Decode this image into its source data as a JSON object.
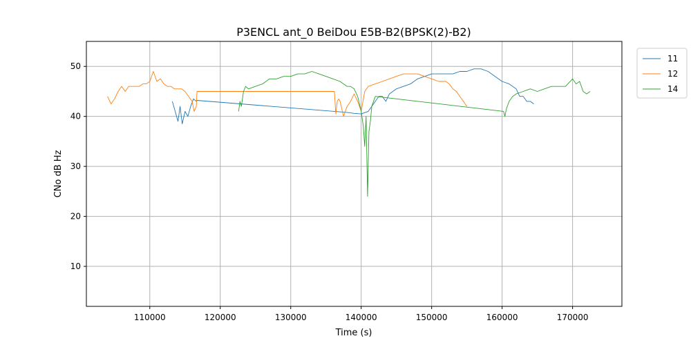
{
  "chart_data": {
    "type": "line",
    "title": "P3ENCL ant_0 BeiDou E5B-B2(BPSK(2)-B2)",
    "xlabel": "Time (s)",
    "ylabel": "CNo dB Hz",
    "xlim": [
      101000,
      177000
    ],
    "ylim": [
      2,
      55
    ],
    "xticks": [
      110000,
      120000,
      130000,
      140000,
      150000,
      160000,
      170000
    ],
    "yticks": [
      10,
      20,
      30,
      40,
      50
    ],
    "grid": true,
    "legend": "outside-top-right",
    "colors": {
      "11": "#1f77b4",
      "12": "#ff7f0e",
      "14": "#2ca02c"
    },
    "series": [
      {
        "name": "11",
        "x": [
          113200,
          113600,
          114000,
          114300,
          114600,
          115000,
          115400,
          115800,
          116200,
          116600,
          116700,
          138000,
          139000,
          140000,
          141000,
          141500,
          142000,
          142500,
          143000,
          143500,
          144000,
          145000,
          146000,
          147000,
          148000,
          149000,
          150000,
          151000,
          152000,
          153000,
          154000,
          155000,
          156000,
          157000,
          158000,
          159000,
          160000,
          161000,
          162000,
          162500,
          163000,
          163500,
          164000,
          164500
        ],
        "y": [
          43,
          41,
          39,
          42,
          38.5,
          41,
          40,
          42,
          43.5,
          43,
          43.2,
          40.8,
          40.6,
          40.5,
          41,
          42,
          43,
          44,
          44,
          43,
          44.5,
          45.5,
          46,
          46.5,
          47.5,
          48,
          48.5,
          48.5,
          48.5,
          48.5,
          49,
          49,
          49.5,
          49.5,
          49,
          48,
          47,
          46.5,
          45.5,
          44,
          44,
          43,
          43,
          42.5
        ]
      },
      {
        "name": "12",
        "x": [
          104000,
          104500,
          105000,
          105500,
          106000,
          106500,
          107000,
          107500,
          108000,
          108500,
          109000,
          109500,
          110000,
          110500,
          111000,
          111500,
          112000,
          112500,
          113000,
          113500,
          114000,
          114500,
          115000,
          115500,
          116000,
          116300,
          116600,
          116700,
          136200,
          136400,
          136600,
          136800,
          137000,
          137500,
          138000,
          138500,
          139000,
          139500,
          140000,
          140500,
          141000,
          142000,
          143000,
          144000,
          145000,
          146000,
          147000,
          148000,
          149000,
          150000,
          151000,
          152000,
          152500,
          153000,
          153500,
          154000,
          154500,
          155000
        ],
        "y": [
          44,
          42.5,
          43.5,
          45,
          46,
          45,
          46,
          46,
          46,
          46,
          46.5,
          46.5,
          47,
          49,
          47,
          47.5,
          46.5,
          46,
          46,
          45.5,
          45.5,
          45.5,
          45,
          44,
          43,
          41,
          42,
          45,
          45,
          40.5,
          43,
          43.5,
          43,
          40,
          42,
          43,
          44.5,
          43,
          41,
          45,
          46,
          46.5,
          47,
          47.5,
          48,
          48.5,
          48.5,
          48.5,
          48,
          47.5,
          47,
          47,
          46.5,
          45.5,
          45,
          44,
          43,
          42
        ]
      },
      {
        "name": "14",
        "x": [
          122600,
          122800,
          123000,
          123300,
          123600,
          124000,
          125000,
          126000,
          127000,
          128000,
          129000,
          130000,
          131000,
          132000,
          133000,
          134000,
          135000,
          136000,
          137000,
          138000,
          138500,
          139000,
          139500,
          140000,
          140300,
          140500,
          140700,
          140900,
          141100,
          141300,
          141500,
          142000,
          160200,
          160400,
          160600,
          161000,
          161500,
          162000,
          163000,
          164000,
          165000,
          166000,
          167000,
          168000,
          169000,
          170000,
          170500,
          171000,
          171500,
          172000,
          172500
        ],
        "y": [
          41,
          43,
          42,
          45,
          46,
          45.5,
          46,
          46.5,
          47.5,
          47.5,
          48,
          48,
          48.5,
          48.5,
          49,
          48.5,
          48,
          47.5,
          47,
          46,
          46,
          45.5,
          44,
          41,
          38,
          34,
          40,
          24,
          37,
          39,
          42,
          44,
          41,
          40,
          41.5,
          43,
          44,
          44.5,
          45,
          45.5,
          45,
          45.5,
          46,
          46,
          46,
          47.5,
          46.5,
          47,
          45,
          44.5,
          45
        ]
      }
    ]
  }
}
